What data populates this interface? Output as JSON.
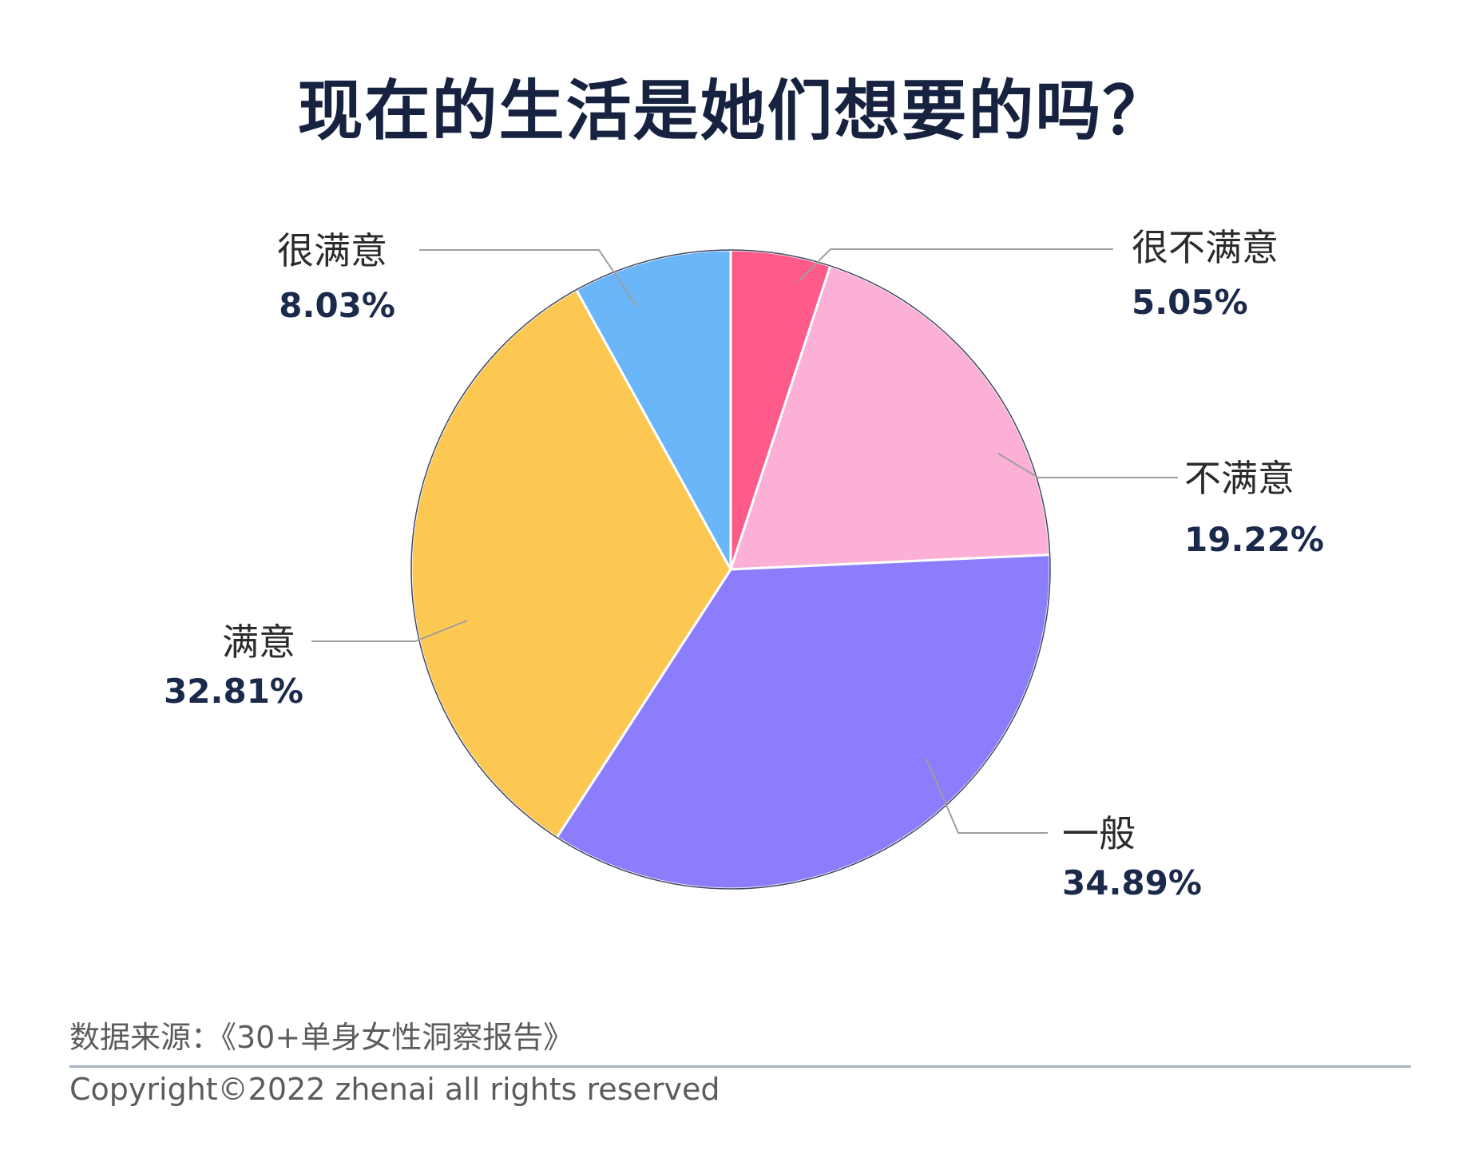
{
  "chart_data": {
    "type": "pie",
    "title": "现在的生活是她们想要的吗？",
    "slices": [
      {
        "label": "很不满意",
        "value": 5.05,
        "display": "5.05%",
        "color": "#ff5b8a"
      },
      {
        "label": "不满意",
        "value": 19.22,
        "display": "19.22%",
        "color": "#fcb0d6"
      },
      {
        "label": "一般",
        "value": 34.89,
        "display": "34.89%",
        "color": "#8c7dfd"
      },
      {
        "label": "满意",
        "value": 32.81,
        "display": "32.81%",
        "color": "#fcc851"
      },
      {
        "label": "很满意",
        "value": 8.03,
        "display": "8.03%",
        "color": "#6bb6f9"
      }
    ],
    "start": "12 o'clock",
    "direction": "clockwise",
    "legend": "none"
  },
  "footer": {
    "source": "数据来源：《30+单身女性洞察报告》",
    "copyright": "Copyright©2022  zhenai  all rights reserved"
  },
  "colors": {
    "title": "#16223f",
    "value_text": "#1b2a4a",
    "leader_line": "#9e9e9e",
    "slice_border": "#3f4660",
    "footer_rule": "#a9b3c2"
  }
}
